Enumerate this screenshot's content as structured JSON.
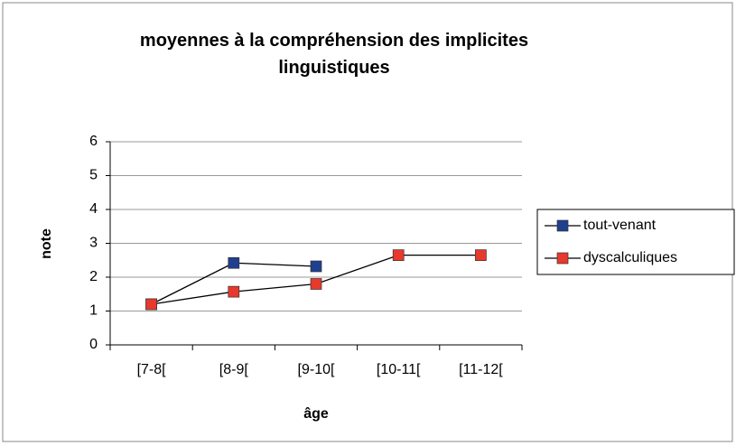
{
  "chart_data": {
    "type": "line",
    "title": "moyennes à la compréhension des implicites linguistiques",
    "xlabel": "âge",
    "ylabel": "note",
    "categories": [
      "[7-8[",
      "[8-9[",
      "[9-10[",
      "[10-11[",
      "[11-12["
    ],
    "series": [
      {
        "name": "tout-venant",
        "color": "#1f3f8f",
        "values": [
          1.2,
          2.42,
          2.32,
          null,
          null
        ]
      },
      {
        "name": "dyscalculiques",
        "color": "#e8392c",
        "values": [
          1.2,
          1.57,
          1.8,
          2.65,
          2.65
        ]
      }
    ],
    "ylim": [
      0,
      6
    ],
    "yticks": [
      0,
      1,
      2,
      3,
      4,
      5,
      6
    ],
    "grid": true,
    "legend": "right"
  }
}
